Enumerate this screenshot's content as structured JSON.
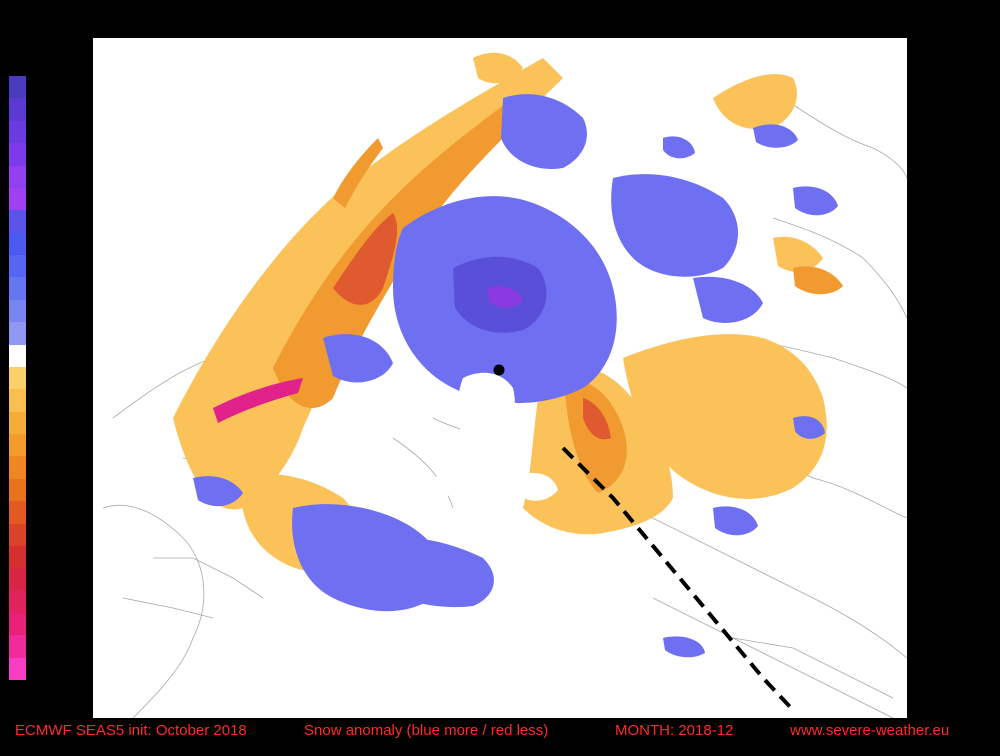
{
  "footer": {
    "init": "ECMWF SEAS5 init: October 2018",
    "title": "Snow anomaly (blue more / red less)",
    "month": "MONTH: 2018-12",
    "site": "www.severe-weather.eu"
  },
  "legend": {
    "colors": [
      "#4a3bbd",
      "#5a3ad0",
      "#6b3ae0",
      "#7d3aea",
      "#9040f0",
      "#a040f0",
      "#5a55e8",
      "#4a5af0",
      "#5566f0",
      "#6676f0",
      "#7886f0",
      "#8f98f2",
      "#ffffff",
      "#fbd06a",
      "#f8bf50",
      "#f5ad3a",
      "#f29a2e",
      "#ee8624",
      "#e8721e",
      "#e05a22",
      "#d84428",
      "#d4302e",
      "#d82546",
      "#e0225e",
      "#e82078",
      "#f02a9c",
      "#f53ec4"
    ]
  },
  "map": {
    "colors": {
      "blue_more": "#6f6ff2",
      "blue_deep": "#5a4fd8",
      "purple": "#8a3ae0",
      "orange_light": "#fbc25a",
      "orange": "#f09a30",
      "red": "#e05a30",
      "magenta": "#e0228a",
      "outline": "#9a9a9a",
      "pole_marker": "#000000"
    },
    "pole_marker_icon": "black-dot"
  }
}
